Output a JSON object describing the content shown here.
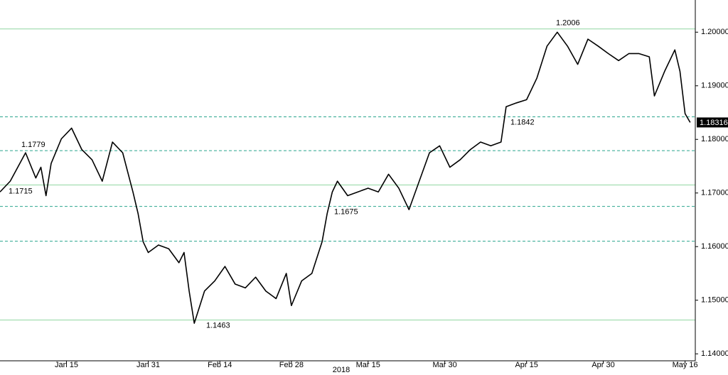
{
  "chart_data": {
    "type": "line",
    "xlabel": "2018",
    "x": [
      "2018-01-02",
      "2018-01-04",
      "2018-01-07",
      "2018-01-09",
      "2018-01-10",
      "2018-01-11",
      "2018-01-12",
      "2018-01-14",
      "2018-01-16",
      "2018-01-18",
      "2018-01-20",
      "2018-01-22",
      "2018-01-24",
      "2018-01-26",
      "2018-01-28",
      "2018-01-29",
      "2018-01-30",
      "2018-01-31",
      "2018-02-02",
      "2018-02-04",
      "2018-02-06",
      "2018-02-07",
      "2018-02-08",
      "2018-02-09",
      "2018-02-11",
      "2018-02-13",
      "2018-02-15",
      "2018-02-17",
      "2018-02-19",
      "2018-02-21",
      "2018-02-23",
      "2018-02-25",
      "2018-02-27",
      "2018-02-28",
      "2018-03-02",
      "2018-03-04",
      "2018-03-06",
      "2018-03-07",
      "2018-03-08",
      "2018-03-09",
      "2018-03-11",
      "2018-03-13",
      "2018-03-15",
      "2018-03-17",
      "2018-03-19",
      "2018-03-21",
      "2018-03-23",
      "2018-03-25",
      "2018-03-27",
      "2018-03-29",
      "2018-03-31",
      "2018-04-02",
      "2018-04-04",
      "2018-04-06",
      "2018-04-08",
      "2018-04-10",
      "2018-04-11",
      "2018-04-13",
      "2018-04-15",
      "2018-04-17",
      "2018-04-19",
      "2018-04-21",
      "2018-04-23",
      "2018-04-25",
      "2018-04-27",
      "2018-04-29",
      "2018-05-01",
      "2018-05-03",
      "2018-05-05",
      "2018-05-07",
      "2018-05-09",
      "2018-05-10",
      "2018-05-12",
      "2018-05-14",
      "2018-05-15",
      "2018-05-16",
      "2018-05-17"
    ],
    "values": [
      1.1702,
      1.1722,
      1.1775,
      1.1728,
      1.1748,
      1.1695,
      1.1755,
      1.1801,
      1.1821,
      1.1781,
      1.1762,
      1.1722,
      1.1795,
      1.1775,
      1.1702,
      1.1662,
      1.1609,
      1.1589,
      1.1603,
      1.1596,
      1.157,
      1.1589,
      1.1517,
      1.1457,
      1.1517,
      1.1536,
      1.1563,
      1.153,
      1.1523,
      1.1543,
      1.1517,
      1.1503,
      1.155,
      1.149,
      1.1536,
      1.155,
      1.1609,
      1.1662,
      1.1702,
      1.1722,
      1.1695,
      1.1702,
      1.1709,
      1.1702,
      1.1735,
      1.1709,
      1.1669,
      1.1722,
      1.1775,
      1.1788,
      1.1748,
      1.1762,
      1.1781,
      1.1795,
      1.1788,
      1.1795,
      1.1861,
      1.1868,
      1.1874,
      1.1914,
      1.1974,
      1.2,
      1.1974,
      1.194,
      1.1987,
      1.1974,
      1.196,
      1.1947,
      1.196,
      1.196,
      1.1954,
      1.1881,
      1.1927,
      1.1967,
      1.1927,
      1.1848,
      1.18316
    ],
    "color": "#000000",
    "xlim": [
      "2018-01-02",
      "2018-05-18"
    ],
    "xticks": [
      {
        "value": "2018-01-15",
        "label": "Jan 15"
      },
      {
        "value": "2018-01-31",
        "label": "Jan 31"
      },
      {
        "value": "2018-02-14",
        "label": "Feb 14"
      },
      {
        "value": "2018-02-28",
        "label": "Feb 28"
      },
      {
        "value": "2018-03-15",
        "label": "Mar 15"
      },
      {
        "value": "2018-03-30",
        "label": "Mar 30"
      },
      {
        "value": "2018-04-15",
        "label": "Apr 15"
      },
      {
        "value": "2018-04-30",
        "label": "Apr 30"
      },
      {
        "value": "2018-05-16",
        "label": "May 16"
      }
    ],
    "ylim": [
      1.1387,
      1.206
    ],
    "yticks": [
      {
        "value": 1.14,
        "label": "1.14000"
      },
      {
        "value": 1.15,
        "label": "1.15000"
      },
      {
        "value": 1.16,
        "label": "1.16000"
      },
      {
        "value": 1.17,
        "label": "1.17000"
      },
      {
        "value": 1.18,
        "label": "1.18000"
      },
      {
        "value": 1.19,
        "label": "1.19000"
      },
      {
        "value": 1.2,
        "label": "1.20000"
      }
    ],
    "reference_lines": [
      {
        "value": 1.2006,
        "label": "1.2006",
        "style": "solid",
        "color": "#8fd6a0"
      },
      {
        "value": 1.1842,
        "label": "1.1842",
        "style": "dashed",
        "color": "#2aa58e"
      },
      {
        "value": 1.1779,
        "label": "1.1779",
        "style": "dashed",
        "color": "#2aa58e"
      },
      {
        "value": 1.1715,
        "label": "1.1715",
        "style": "solid",
        "color": "#8fd6a0"
      },
      {
        "value": 1.1675,
        "label": "1.1675",
        "style": "dashed",
        "color": "#2aa58e"
      },
      {
        "value": 1.161,
        "style": "dashed",
        "color": "#2aa58e"
      },
      {
        "value": 1.1463,
        "label": "1.1463",
        "style": "solid",
        "color": "#8fd6a0"
      }
    ]
  }
}
